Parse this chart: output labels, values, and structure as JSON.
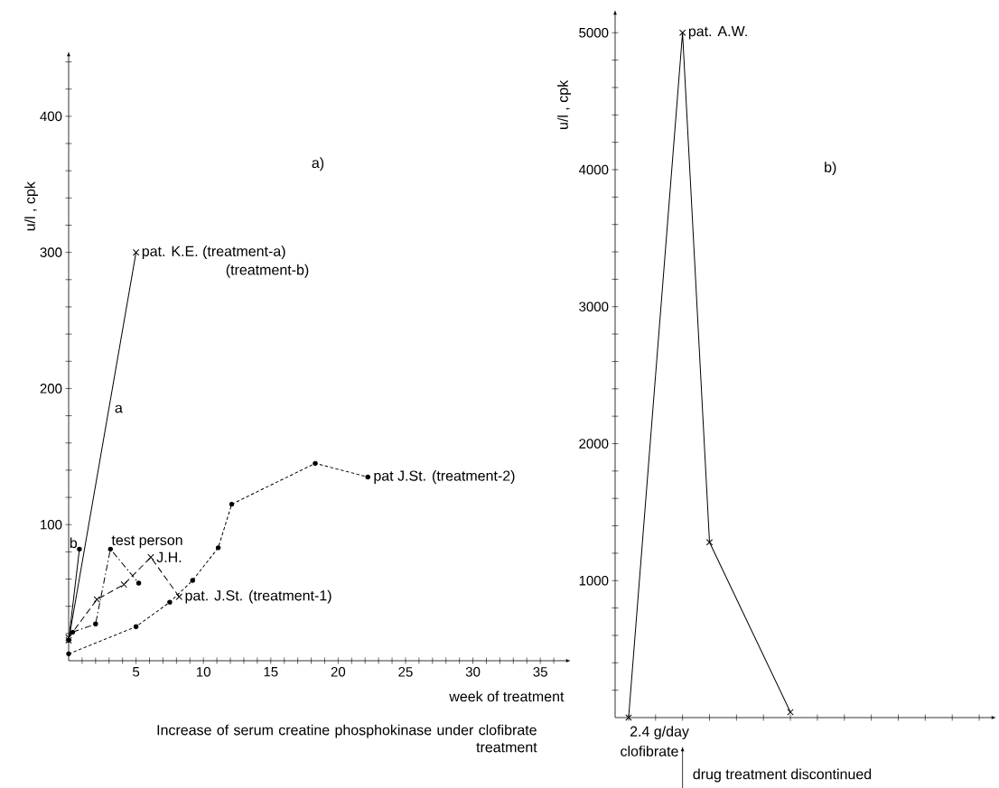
{
  "chart_data": [
    {
      "type": "line",
      "title": "a)",
      "xlabel": "week of treatment",
      "ylabel": "u/l , cpk",
      "xlim": [
        0,
        37
      ],
      "ylim": [
        0,
        445
      ],
      "xticks": [
        {
          "value": 1,
          "label": null
        },
        {
          "value": 2,
          "label": null
        },
        {
          "value": 3,
          "label": null
        },
        {
          "value": 4,
          "label": null
        },
        5,
        {
          "value": 6,
          "label": null
        },
        {
          "value": 7,
          "label": null
        },
        {
          "value": 8,
          "label": null
        },
        {
          "value": 9,
          "label": null
        },
        10,
        {
          "value": 11,
          "label": null
        },
        {
          "value": 12,
          "label": null
        },
        {
          "value": 13,
          "label": null
        },
        {
          "value": 14,
          "label": null
        },
        15,
        {
          "value": 16,
          "label": null
        },
        {
          "value": 17,
          "label": null
        },
        {
          "value": 18,
          "label": null
        },
        {
          "value": 19,
          "label": null
        },
        20,
        {
          "value": 21,
          "label": null
        },
        {
          "value": 22,
          "label": null
        },
        {
          "value": 23,
          "label": null
        },
        {
          "value": 24,
          "label": null
        },
        25,
        {
          "value": 26,
          "label": null
        },
        {
          "value": 27,
          "label": null
        },
        {
          "value": 28,
          "label": null
        },
        {
          "value": 29,
          "label": null
        },
        30,
        {
          "value": 31,
          "label": null
        },
        {
          "value": 32,
          "label": null
        },
        {
          "value": 33,
          "label": null
        },
        {
          "value": 34,
          "label": null
        },
        35,
        {
          "value": 36,
          "label": null
        }
      ],
      "yticks": [
        {
          "value": 20,
          "label": null
        },
        {
          "value": 40,
          "label": null
        },
        {
          "value": 60,
          "label": null
        },
        {
          "value": 80,
          "label": null
        },
        100,
        {
          "value": 120,
          "label": null
        },
        {
          "value": 140,
          "label": null
        },
        {
          "value": 160,
          "label": null
        },
        {
          "value": 180,
          "label": null
        },
        200,
        {
          "value": 220,
          "label": null
        },
        {
          "value": 240,
          "label": null
        },
        {
          "value": 260,
          "label": null
        },
        {
          "value": 280,
          "label": null
        },
        300,
        {
          "value": 320,
          "label": null
        },
        {
          "value": 340,
          "label": null
        },
        {
          "value": 360,
          "label": null
        },
        {
          "value": 380,
          "label": null
        },
        400,
        {
          "value": 420,
          "label": null
        },
        {
          "value": 440,
          "label": null
        }
      ],
      "series": [
        {
          "name": "pat. K.E.  (treatment-a)",
          "color": "#000000",
          "marker": "cross",
          "line_style": "solid",
          "x": [
            0,
            5
          ],
          "values": [
            15,
            300
          ]
        },
        {
          "color": "#000000",
          "marker": "circle",
          "line_style": "solid",
          "x": [
            0,
            0.8
          ],
          "values": [
            15,
            82
          ]
        },
        {
          "name": "test person",
          "color": "#000000",
          "marker": "circle",
          "line_style": "dashdot",
          "x": [
            0.3,
            2,
            3.1,
            5.2
          ],
          "values": [
            21,
            27,
            82,
            57
          ]
        },
        {
          "name": "J.H.",
          "color": "#000000",
          "marker": "cross",
          "line_style": "dashed",
          "x": [
            0,
            2.1,
            4.1,
            6.1,
            8.2
          ],
          "values": [
            17,
            45,
            56,
            76,
            47
          ]
        },
        {
          "name": "pat J.St. (treatment-2)",
          "color": "#000000",
          "marker": "circle",
          "line_style": "dotted",
          "x": [
            0,
            5,
            7.5,
            9.2,
            11.1,
            12.1,
            18.3,
            22.2
          ],
          "values": [
            5,
            25,
            43,
            59,
            83,
            115,
            145,
            135
          ]
        }
      ],
      "annotations": [
        "Increase of serum creatine phosphokinase under clofibrate treatment",
        "(treatment-b)",
        {
          "text": "a",
          "x": 3,
          "y": 185
        },
        "b",
        {
          "text": "pat. J.St.  (treatment-1)",
          "x": 8.2,
          "y": 47
        }
      ]
    },
    {
      "type": "line",
      "title": "b)",
      "ylabel": "u/l , cpk",
      "ylim": [
        0,
        5140
      ],
      "tick_labels": "y",
      "categories": [
        null,
        null,
        null,
        null,
        null,
        null,
        null,
        null,
        null,
        null,
        null,
        null,
        null,
        null
      ],
      "yticks": [
        {
          "value": 200,
          "label": null
        },
        {
          "value": 400,
          "label": null
        },
        {
          "value": 600,
          "label": null
        },
        {
          "value": 800,
          "label": null
        },
        1000,
        {
          "value": 1200,
          "label": null
        },
        {
          "value": 1400,
          "label": null
        },
        {
          "value": 1600,
          "label": null
        },
        {
          "value": 1800,
          "label": null
        },
        2000,
        {
          "value": 2200,
          "label": null
        },
        {
          "value": 2400,
          "label": null
        },
        {
          "value": 2600,
          "label": null
        },
        {
          "value": 2800,
          "label": null
        },
        3000,
        {
          "value": 3200,
          "label": null
        },
        {
          "value": 3400,
          "label": null
        },
        {
          "value": 3600,
          "label": null
        },
        {
          "value": 3800,
          "label": null
        },
        4000,
        {
          "value": 4200,
          "label": null
        },
        {
          "value": 4400,
          "label": null
        },
        {
          "value": 4600,
          "label": null
        },
        {
          "value": 4800,
          "label": null
        },
        5000
      ],
      "series": [
        {
          "name": "pat. A.W.",
          "color": "#000000",
          "marker": "cross",
          "line_style": "solid",
          "values": [
            0,
            null,
            5000,
            1280,
            null,
            null,
            40,
            null,
            null,
            null,
            null,
            null,
            null,
            null
          ]
        }
      ],
      "annotations": [
        "2.4 g/day",
        "clofibrate",
        "drug treatment discontinued"
      ]
    }
  ]
}
